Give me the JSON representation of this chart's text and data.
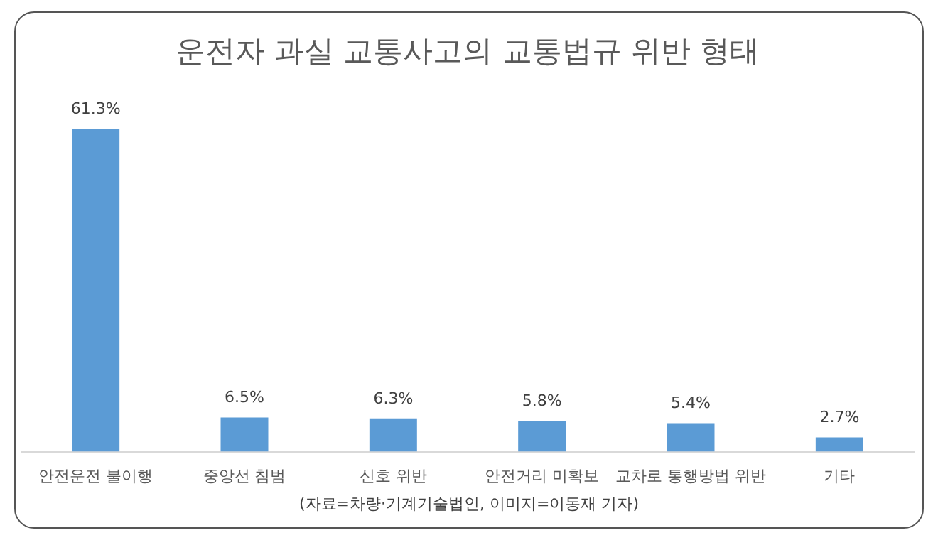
{
  "chart_data": {
    "type": "bar",
    "title": "운전자 과실 교통사고의 교통법규 위반 형태",
    "categories": [
      "안전운전 불이행",
      "중앙선 침범",
      "신호 위반",
      "안전거리 미확보",
      "교차로 통행방법 위반",
      "기타"
    ],
    "values": [
      61.3,
      6.5,
      6.3,
      5.8,
      5.4,
      2.7
    ],
    "value_labels": [
      "61.3%",
      "6.5%",
      "6.3%",
      "5.8%",
      "5.4%",
      "2.7%"
    ],
    "color": "#5b9bd5",
    "grid": false,
    "legend": false,
    "tick_labels": "x",
    "annotations": [
      "(자료=차량·기계기술법인, 이미지=이동재 기자)"
    ]
  }
}
